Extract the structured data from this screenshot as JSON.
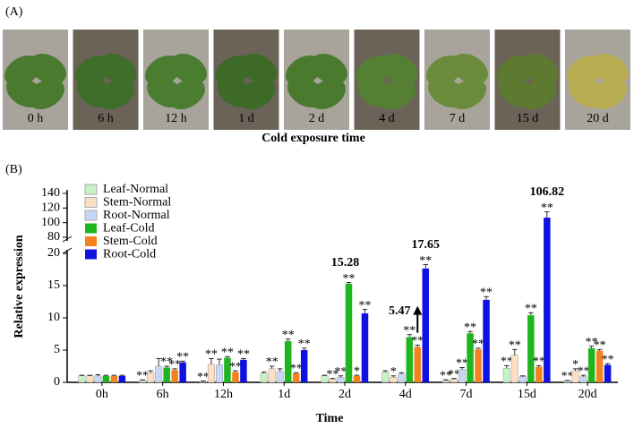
{
  "panel_a": {
    "label": "(A)",
    "times": [
      "0 h",
      "6 h",
      "12 h",
      "1 d",
      "2 d",
      "4 d",
      "7 d",
      "15 d",
      "20 d"
    ],
    "xlabel": "Cold exposure time"
  },
  "chart_data": {
    "type": "bar",
    "panel_label": "(B)",
    "ylabel": "Relative expression",
    "xlabel": "Time",
    "categories": [
      "0h",
      "6h",
      "12h",
      "1d",
      "2d",
      "4d",
      "7d",
      "15d",
      "20d"
    ],
    "ylim": [
      0,
      140
    ],
    "ybreak": [
      20,
      80
    ],
    "yticks": [
      0,
      5,
      10,
      15,
      20,
      80,
      100,
      120,
      140
    ],
    "series": [
      {
        "name": "Leaf-Normal",
        "color": "#c6f2c6",
        "values": [
          1,
          0.3,
          0.1,
          1.4,
          1.0,
          1.6,
          0.3,
          2.2,
          0.2
        ],
        "errors": [
          0.1,
          0.1,
          0.1,
          0.2,
          0.1,
          0.2,
          0.1,
          0.4,
          0.1
        ],
        "significance": [
          null,
          "**",
          "**",
          null,
          null,
          null,
          "**",
          "**",
          "**"
        ]
      },
      {
        "name": "Stem-Normal",
        "color": "#fde0c4",
        "values": [
          1,
          1.5,
          2.8,
          2.1,
          0.5,
          0.8,
          0.5,
          4.2,
          1.8
        ],
        "errors": [
          0.1,
          0.3,
          0.9,
          0.4,
          0.1,
          0.2,
          0.1,
          0.9,
          0.3
        ],
        "significance": [
          null,
          null,
          "**",
          "**",
          "**",
          "*",
          "**",
          "**",
          "*"
        ]
      },
      {
        "name": "Root-Normal",
        "color": "#c8d8f4",
        "values": [
          1,
          2.5,
          2.7,
          1.7,
          0.8,
          1.3,
          2.0,
          0.9,
          0.9
        ],
        "errors": [
          0.2,
          1.2,
          0.9,
          0.4,
          0.2,
          0.2,
          0.3,
          0.1,
          0.2
        ],
        "significance": [
          null,
          null,
          null,
          null,
          "**",
          null,
          "**",
          null,
          "**"
        ]
      },
      {
        "name": "Leaf-Cold",
        "color": "#1fb51f",
        "values": [
          1,
          2.3,
          3.8,
          6.4,
          15.28,
          7.0,
          7.6,
          10.4,
          5.3
        ],
        "errors": [
          0.1,
          0.2,
          0.2,
          0.3,
          0.2,
          0.4,
          0.3,
          0.4,
          0.3
        ],
        "significance": [
          null,
          "**",
          "**",
          "**",
          "**",
          "**",
          "**",
          "**",
          "**"
        ],
        "labeled": [
          4
        ]
      },
      {
        "name": "Stem-Cold",
        "color": "#f5821f",
        "values": [
          1,
          1.9,
          1.6,
          1.4,
          1.0,
          5.47,
          5.1,
          2.4,
          4.9
        ],
        "errors": [
          0.1,
          0.2,
          0.2,
          0.1,
          0.1,
          0.3,
          0.2,
          0.2,
          0.2
        ],
        "significance": [
          null,
          "**",
          "**",
          "**",
          "*",
          "**",
          "**",
          "**",
          "**"
        ],
        "labeled": [
          5
        ]
      },
      {
        "name": "Root-Cold",
        "color": "#1010e0",
        "values": [
          1,
          3.1,
          3.5,
          5.0,
          10.7,
          17.65,
          12.8,
          106.82,
          2.7
        ],
        "errors": [
          0.1,
          0.2,
          0.2,
          0.3,
          0.6,
          0.6,
          0.5,
          8,
          0.2
        ],
        "significance": [
          null,
          "**",
          "**",
          "**",
          "**",
          "**",
          "**",
          "**",
          "**"
        ],
        "labeled": [
          5,
          7
        ]
      }
    ]
  }
}
